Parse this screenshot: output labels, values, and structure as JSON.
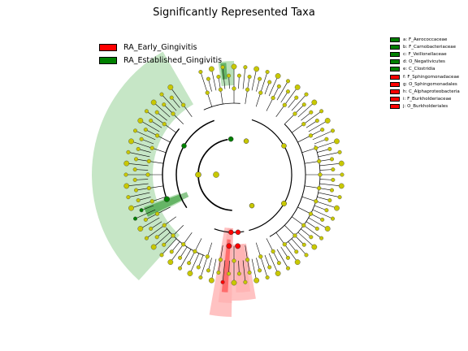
{
  "chart_data": {
    "type": "cladogram",
    "title": "Significantly Represented Taxa",
    "groups": [
      {
        "name": "RA_Early_Gingivitis",
        "color": "#ff0000"
      },
      {
        "name": "RA_Established_Gingivitis",
        "color": "#008000"
      }
    ],
    "taxa": [
      {
        "letter": "a",
        "label": "a: F_Aerococcaceae",
        "group": "RA_Established_Gingivitis"
      },
      {
        "letter": "b",
        "label": "b: F_Carnobacteriaceae",
        "group": "RA_Established_Gingivitis"
      },
      {
        "letter": "c",
        "label": "c: F_Veillonellaceae",
        "group": "RA_Established_Gingivitis"
      },
      {
        "letter": "d",
        "label": "d: O_Negativicutes",
        "group": "RA_Established_Gingivitis"
      },
      {
        "letter": "e",
        "label": "e: C_Clostridia",
        "group": "RA_Established_Gingivitis"
      },
      {
        "letter": "f",
        "label": "f: F_Sphingomonadaceae",
        "group": "RA_Early_Gingivitis"
      },
      {
        "letter": "g",
        "label": "g: O_Sphingomonadales",
        "group": "RA_Early_Gingivitis"
      },
      {
        "letter": "h",
        "label": "h: C_Alphaproteobacteria",
        "group": "RA_Early_Gingivitis"
      },
      {
        "letter": "i",
        "label": "i: F_Burkholderiaceae",
        "group": "RA_Early_Gingivitis"
      },
      {
        "letter": "j",
        "label": "j: O_Burkholderiales",
        "group": "RA_Early_Gingivitis"
      }
    ],
    "colors": {
      "neutral_node": "#c8c800",
      "early": "#ff0000",
      "established": "#008000",
      "early_fill": "#ffb3b3",
      "established_fill": "#b3deb3"
    }
  }
}
